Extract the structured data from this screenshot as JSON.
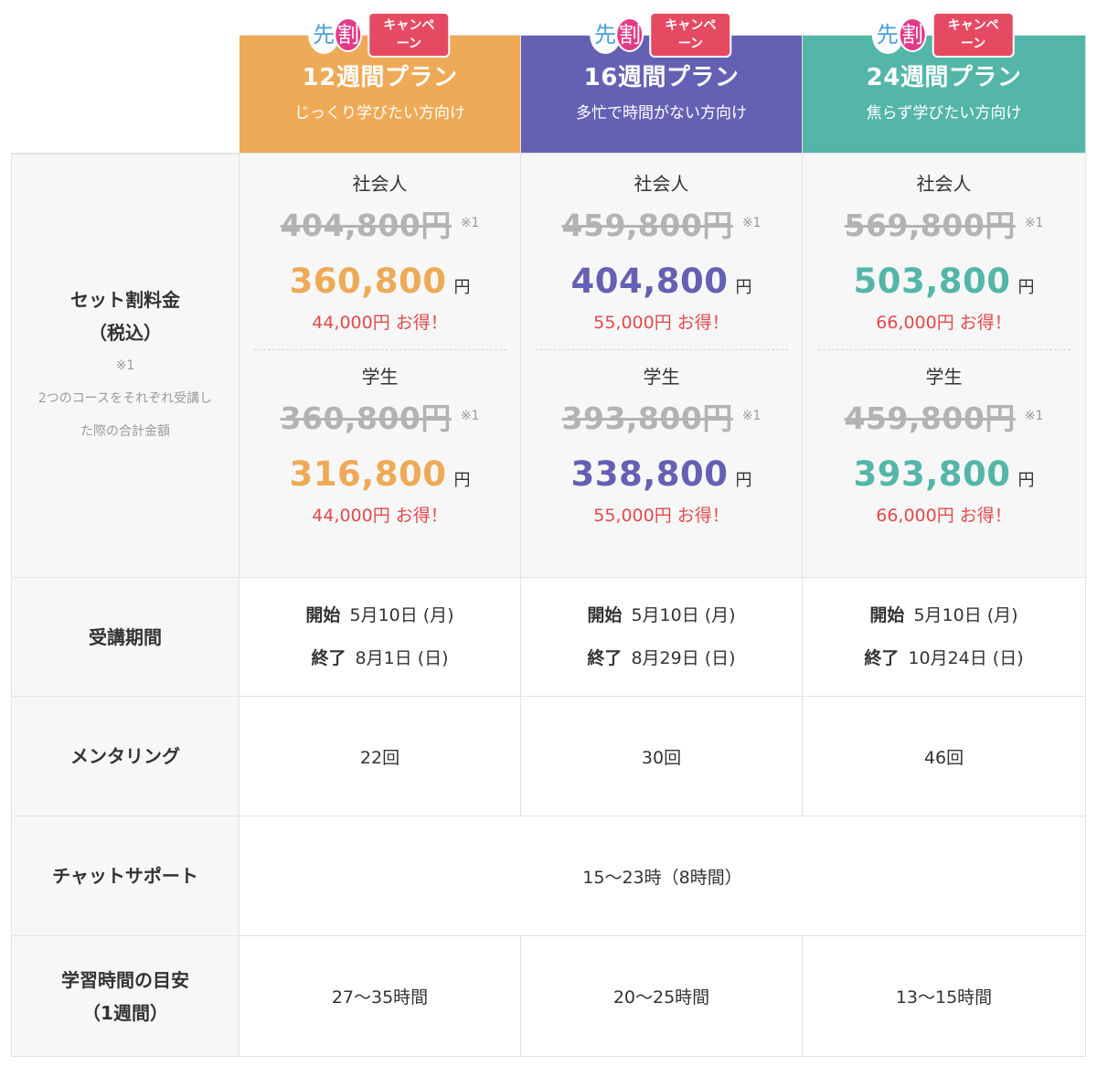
{
  "badge": {
    "kanji1": "先",
    "kanji2": "割",
    "campaign_label": "キャンペーン"
  },
  "colors": {
    "plan12": "#eeaa56",
    "plan16": "#6461b4",
    "plan24": "#54b6a8",
    "savings": "#e24a4a"
  },
  "plans": [
    {
      "title": "12週間プラン",
      "subtitle": "じっくり学びたい方向け",
      "working": {
        "type": "社会人",
        "original": "404,800円",
        "mark": "※1",
        "price": "360,800",
        "unit": "円",
        "savings": "44,000円 お得！"
      },
      "student": {
        "type": "学生",
        "original": "360,800円",
        "mark": "※1",
        "price": "316,800",
        "unit": "円",
        "savings": "44,000円 お得！"
      },
      "start_label": "開始",
      "start": "5月10日 (月)",
      "end_label": "終了",
      "end": "8月1日 (日)",
      "mentoring": "22回",
      "study_hours": "27〜35時間"
    },
    {
      "title": "16週間プラン",
      "subtitle": "多忙で時間がない方向け",
      "working": {
        "type": "社会人",
        "original": "459,800円",
        "mark": "※1",
        "price": "404,800",
        "unit": "円",
        "savings": "55,000円 お得！"
      },
      "student": {
        "type": "学生",
        "original": "393,800円",
        "mark": "※1",
        "price": "338,800",
        "unit": "円",
        "savings": "55,000円 お得！"
      },
      "start_label": "開始",
      "start": "5月10日 (月)",
      "end_label": "終了",
      "end": "8月29日 (日)",
      "mentoring": "30回",
      "study_hours": "20〜25時間"
    },
    {
      "title": "24週間プラン",
      "subtitle": "焦らず学びたい方向け",
      "working": {
        "type": "社会人",
        "original": "569,800円",
        "mark": "※1",
        "price": "503,800",
        "unit": "円",
        "savings": "66,000円 お得！"
      },
      "student": {
        "type": "学生",
        "original": "459,800円",
        "mark": "※1",
        "price": "393,800",
        "unit": "円",
        "savings": "66,000円 お得！"
      },
      "start_label": "開始",
      "start": "5月10日 (月)",
      "end_label": "終了",
      "end": "10月24日 (日)",
      "mentoring": "46回",
      "study_hours": "13〜15時間"
    }
  ],
  "rows": {
    "price_label_1": "セット割料金",
    "price_label_2": "（税込）",
    "price_note_mark": "※1",
    "price_note_1": "2つのコースをそれぞれ受講し",
    "price_note_2": "た際の合計金額",
    "period_label": "受講期間",
    "mentoring_label": "メンタリング",
    "chat_label": "チャットサポート",
    "chat_value": "15〜23時（8時間）",
    "study_label_1": "学習時間の目安",
    "study_label_2": "（1週間）"
  }
}
